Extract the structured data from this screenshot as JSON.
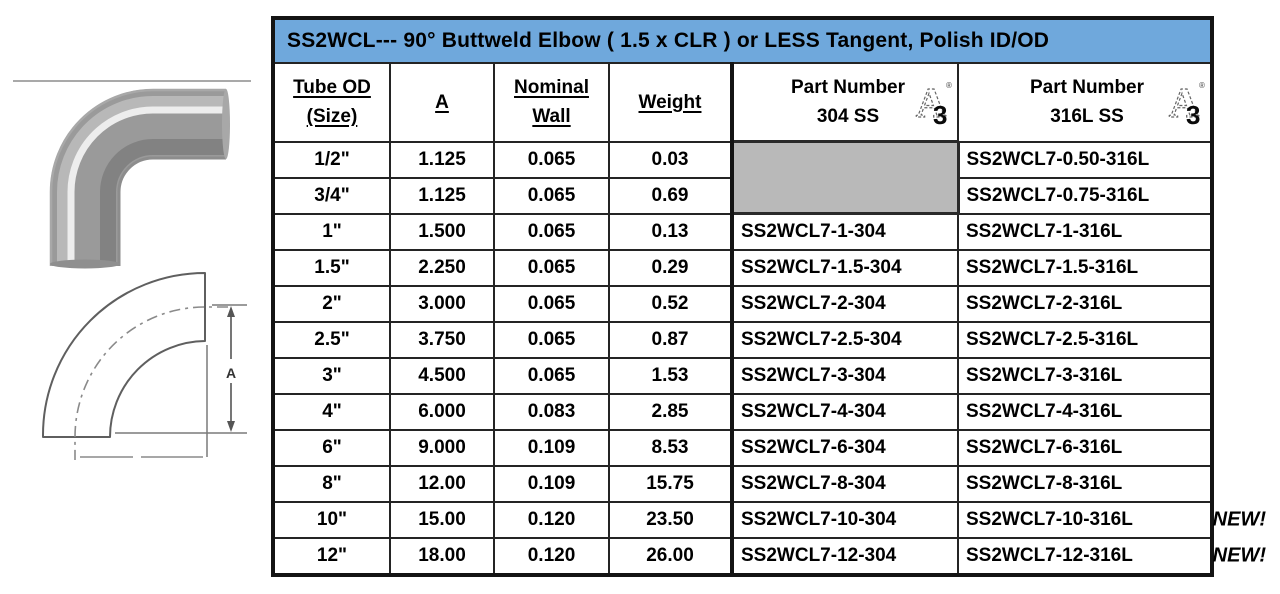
{
  "title": "SS2WCL--- 90° Buttweld Elbow ( 1.5 x CLR ) or LESS Tangent, Polish ID/OD",
  "colors": {
    "title_bar_bg": "#6FA8DC",
    "blocked_cell_bg": "#B9B9B9",
    "grid_line": "#141414"
  },
  "icons": {
    "a3": {
      "name": "3-A sanitary certification symbol",
      "letter": "A",
      "number": "3",
      "mark": "®"
    }
  },
  "diagram": {
    "dimension_label": "A"
  },
  "labels": {
    "new_badge": "NEW!"
  },
  "table": {
    "headers": [
      {
        "line1": "Tube OD",
        "line2": "(Size)"
      },
      {
        "line1": "A"
      },
      {
        "line1": "Nominal",
        "line2": "Wall"
      },
      {
        "line1": "Weight"
      },
      {
        "line1": "Part Number",
        "line2": "304 SS"
      },
      {
        "line1": "Part Number",
        "line2": "316L SS"
      }
    ],
    "rows": [
      {
        "size": "1/2\"",
        "a": "1.125",
        "wall": "0.065",
        "weight": "0.03",
        "part_304": null,
        "part_316": "SS2WCL7-0.50-316L",
        "new": false
      },
      {
        "size": "3/4\"",
        "a": "1.125",
        "wall": "0.065",
        "weight": "0.69",
        "part_304": null,
        "part_316": "SS2WCL7-0.75-316L",
        "new": false
      },
      {
        "size": "1\"",
        "a": "1.500",
        "wall": "0.065",
        "weight": "0.13",
        "part_304": "SS2WCL7-1-304",
        "part_316": "SS2WCL7-1-316L",
        "new": false
      },
      {
        "size": "1.5\"",
        "a": "2.250",
        "wall": "0.065",
        "weight": "0.29",
        "part_304": "SS2WCL7-1.5-304",
        "part_316": "SS2WCL7-1.5-316L",
        "new": false
      },
      {
        "size": "2\"",
        "a": "3.000",
        "wall": "0.065",
        "weight": "0.52",
        "part_304": "SS2WCL7-2-304",
        "part_316": "SS2WCL7-2-316L",
        "new": false
      },
      {
        "size": "2.5\"",
        "a": "3.750",
        "wall": "0.065",
        "weight": "0.87",
        "part_304": "SS2WCL7-2.5-304",
        "part_316": "SS2WCL7-2.5-316L",
        "new": false
      },
      {
        "size": "3\"",
        "a": "4.500",
        "wall": "0.065",
        "weight": "1.53",
        "part_304": "SS2WCL7-3-304",
        "part_316": "SS2WCL7-3-316L",
        "new": false
      },
      {
        "size": "4\"",
        "a": "6.000",
        "wall": "0.083",
        "weight": "2.85",
        "part_304": "SS2WCL7-4-304",
        "part_316": "SS2WCL7-4-316L",
        "new": false
      },
      {
        "size": "6\"",
        "a": "9.000",
        "wall": "0.109",
        "weight": "8.53",
        "part_304": "SS2WCL7-6-304",
        "part_316": "SS2WCL7-6-316L",
        "new": false
      },
      {
        "size": "8\"",
        "a": "12.00",
        "wall": "0.109",
        "weight": "15.75",
        "part_304": "SS2WCL7-8-304",
        "part_316": "SS2WCL7-8-316L",
        "new": false
      },
      {
        "size": "10\"",
        "a": "15.00",
        "wall": "0.120",
        "weight": "23.50",
        "part_304": "SS2WCL7-10-304",
        "part_316": "SS2WCL7-10-316L",
        "new": true
      },
      {
        "size": "12\"",
        "a": "18.00",
        "wall": "0.120",
        "weight": "26.00",
        "part_304": "SS2WCL7-12-304",
        "part_316": "SS2WCL7-12-316L",
        "new": true
      }
    ]
  }
}
